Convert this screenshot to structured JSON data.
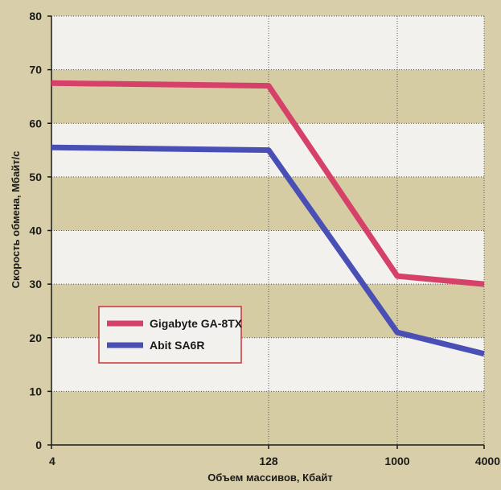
{
  "chart_data": {
    "type": "line",
    "title": "",
    "xlabel": "Объем массивов, Кбайт",
    "ylabel": "Скорость обмена, Мбайт/с",
    "x": [
      "4",
      "128",
      "1000",
      "4000"
    ],
    "ylim": [
      0,
      80
    ],
    "yticks": [
      0,
      10,
      20,
      30,
      40,
      50,
      60,
      70,
      80
    ],
    "grid": true,
    "legend_position": "lower-left",
    "series": [
      {
        "name": "Gigabyte GA-8TX",
        "color": "#d6416a",
        "values": [
          67.5,
          67.0,
          31.5,
          30.0
        ]
      },
      {
        "name": "Abit SA6R",
        "color": "#4a4fb5",
        "values": [
          55.5,
          55.0,
          21.0,
          17.0
        ]
      }
    ],
    "colors": {
      "band_light": "#f2f1ee",
      "band_dark": "#d6cca4",
      "outer_background": "#d8cfaa",
      "axis": "#1a1a1a",
      "grid": "#555555"
    }
  }
}
